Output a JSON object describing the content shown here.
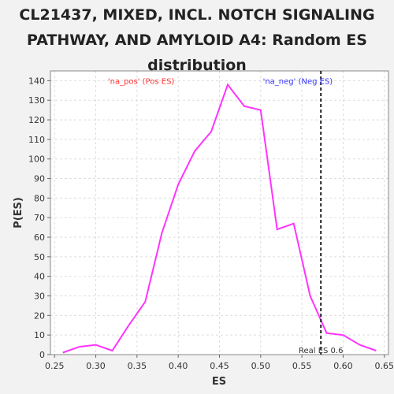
{
  "chart_data": {
    "type": "line",
    "title": "CL21437, MIXED, INCL. NOTCH SIGNALING\nPATHWAY, AND AMYLOID A4: Random ES\ndistribution",
    "xlabel": "ES",
    "ylabel": "P(ES)",
    "xlim": [
      0.245,
      0.655
    ],
    "ylim": [
      0,
      145
    ],
    "xticks": [
      0.25,
      0.3,
      0.35,
      0.4,
      0.45,
      0.5,
      0.55,
      0.6,
      0.65
    ],
    "xtick_labels": [
      "0.25",
      "0.30",
      "0.35",
      "0.40",
      "0.45",
      "0.50",
      "0.55",
      "0.60",
      "0.65"
    ],
    "yticks": [
      0,
      10,
      20,
      30,
      40,
      50,
      60,
      70,
      80,
      90,
      100,
      110,
      120,
      130,
      140
    ],
    "grid": true,
    "series": [
      {
        "color": "#ff33ff",
        "x": [
          0.26,
          0.28,
          0.3,
          0.32,
          0.34,
          0.36,
          0.38,
          0.4,
          0.42,
          0.44,
          0.46,
          0.48,
          0.5,
          0.52,
          0.54,
          0.56,
          0.58,
          0.6,
          0.62,
          0.64
        ],
        "y": [
          1,
          4,
          5,
          2,
          15,
          27,
          62,
          87,
          104,
          114,
          138,
          127,
          125,
          64,
          67,
          30,
          11,
          10,
          5,
          2
        ]
      }
    ],
    "real_es": {
      "value": 0.573,
      "label": "Real ES 0.6"
    },
    "annotations": [
      {
        "text": "'na_pos' (Pos ES)",
        "x": 0.355,
        "y": 140,
        "color": "#ff3333"
      },
      {
        "text": "'na_neg' (Neg ES)",
        "x": 0.545,
        "y": 140,
        "color": "#3333ff"
      }
    ]
  }
}
